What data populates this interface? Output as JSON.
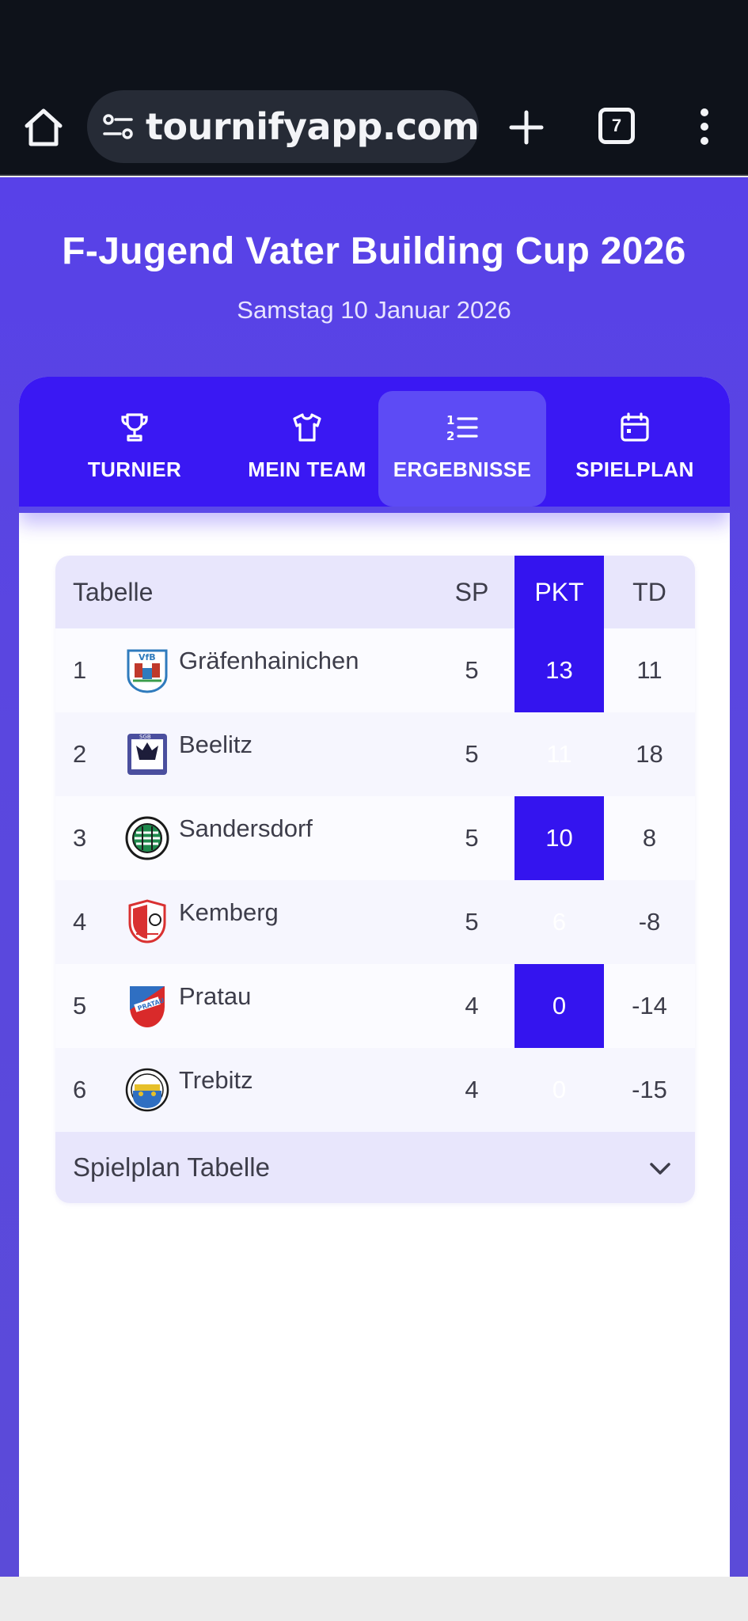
{
  "browser": {
    "url": "tournifyapp.com/l",
    "tab_count": "7"
  },
  "tournament": {
    "title": "F-Jugend Vater Building Cup 2026",
    "date": "Samstag 10 Januar 2026"
  },
  "nav": {
    "items": [
      {
        "label": "TURNIER",
        "icon": "trophy-icon"
      },
      {
        "label": "MEIN TEAM",
        "icon": "shirt-icon"
      },
      {
        "label": "ERGEBNISSE",
        "icon": "ranking-list-icon",
        "active": true
      },
      {
        "label": "SPIELPLAN",
        "icon": "calendar-icon"
      }
    ]
  },
  "table": {
    "headers": {
      "name": "Tabelle",
      "sp": "SP",
      "pkt": "PKT",
      "td": "TD"
    },
    "rows": [
      {
        "rank": "1",
        "team": "Gräfenhainichen",
        "sp": "5",
        "pkt": "13",
        "td": "11"
      },
      {
        "rank": "2",
        "team": "Beelitz",
        "sp": "5",
        "pkt": "11",
        "td": "18"
      },
      {
        "rank": "3",
        "team": "Sandersdorf",
        "sp": "5",
        "pkt": "10",
        "td": "8"
      },
      {
        "rank": "4",
        "team": "Kemberg",
        "sp": "5",
        "pkt": "6",
        "td": "-8"
      },
      {
        "rank": "5",
        "team": "Pratau",
        "sp": "4",
        "pkt": "0",
        "td": "-14"
      },
      {
        "rank": "6",
        "team": "Trebitz",
        "sp": "4",
        "pkt": "0",
        "td": "-15"
      }
    ],
    "footer": "Spielplan Tabelle"
  },
  "colors": {
    "accent": "#3a18f3",
    "hero": "#5841e8",
    "pkt_column": "#3414ef"
  }
}
